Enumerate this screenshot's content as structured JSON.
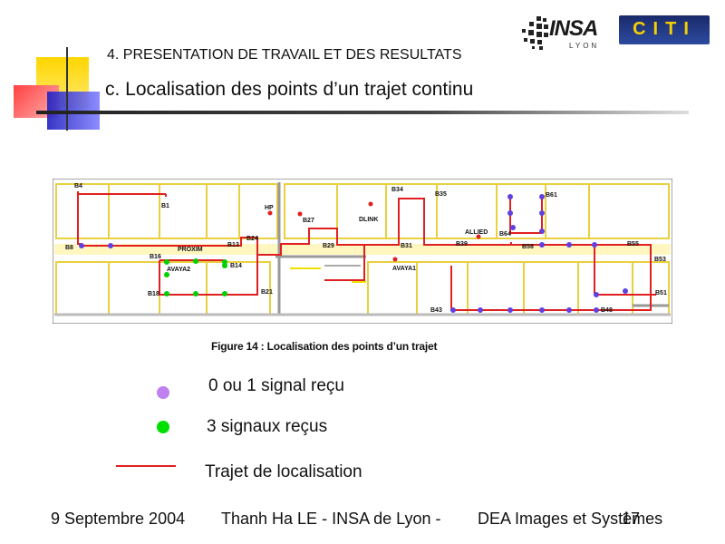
{
  "header": {
    "section_title": "4. PRESENTATION DE TRAVAIL ET DES RESULTATS",
    "subsection_title": "c. Localisation des points d’un trajet continu",
    "logo_insa_text": "INSA",
    "logo_insa_city": "LYON",
    "logo_cite_text": "CITI"
  },
  "figure": {
    "caption": "Figure 14 : Localisation des points d’un trajet",
    "rooms": [
      "B4",
      "B1",
      "HP",
      "B27",
      "DLINK",
      "B34",
      "B35",
      "B61",
      "ALLIED",
      "B64",
      "B8",
      "PROXIM",
      "B13",
      "B24",
      "B29",
      "B31",
      "B39",
      "B58",
      "B55",
      "B16",
      "AVAYA2",
      "B14",
      "AVAYA1",
      "B53",
      "B18",
      "B21",
      "B43",
      "B48",
      "B51"
    ]
  },
  "legend": {
    "purple_label": "0 ou 1 signal reçu",
    "green_label": "3 signaux reçus",
    "line_label": "Trajet de localisation",
    "purple_color": "#c080f0",
    "green_color": "#00e000",
    "line_color": "#e02020"
  },
  "footer": {
    "date": "9 Septembre 2004",
    "author": "Thanh Ha LE - INSA de Lyon -",
    "lab": "DEA Images et Systèmes",
    "page": "17"
  }
}
